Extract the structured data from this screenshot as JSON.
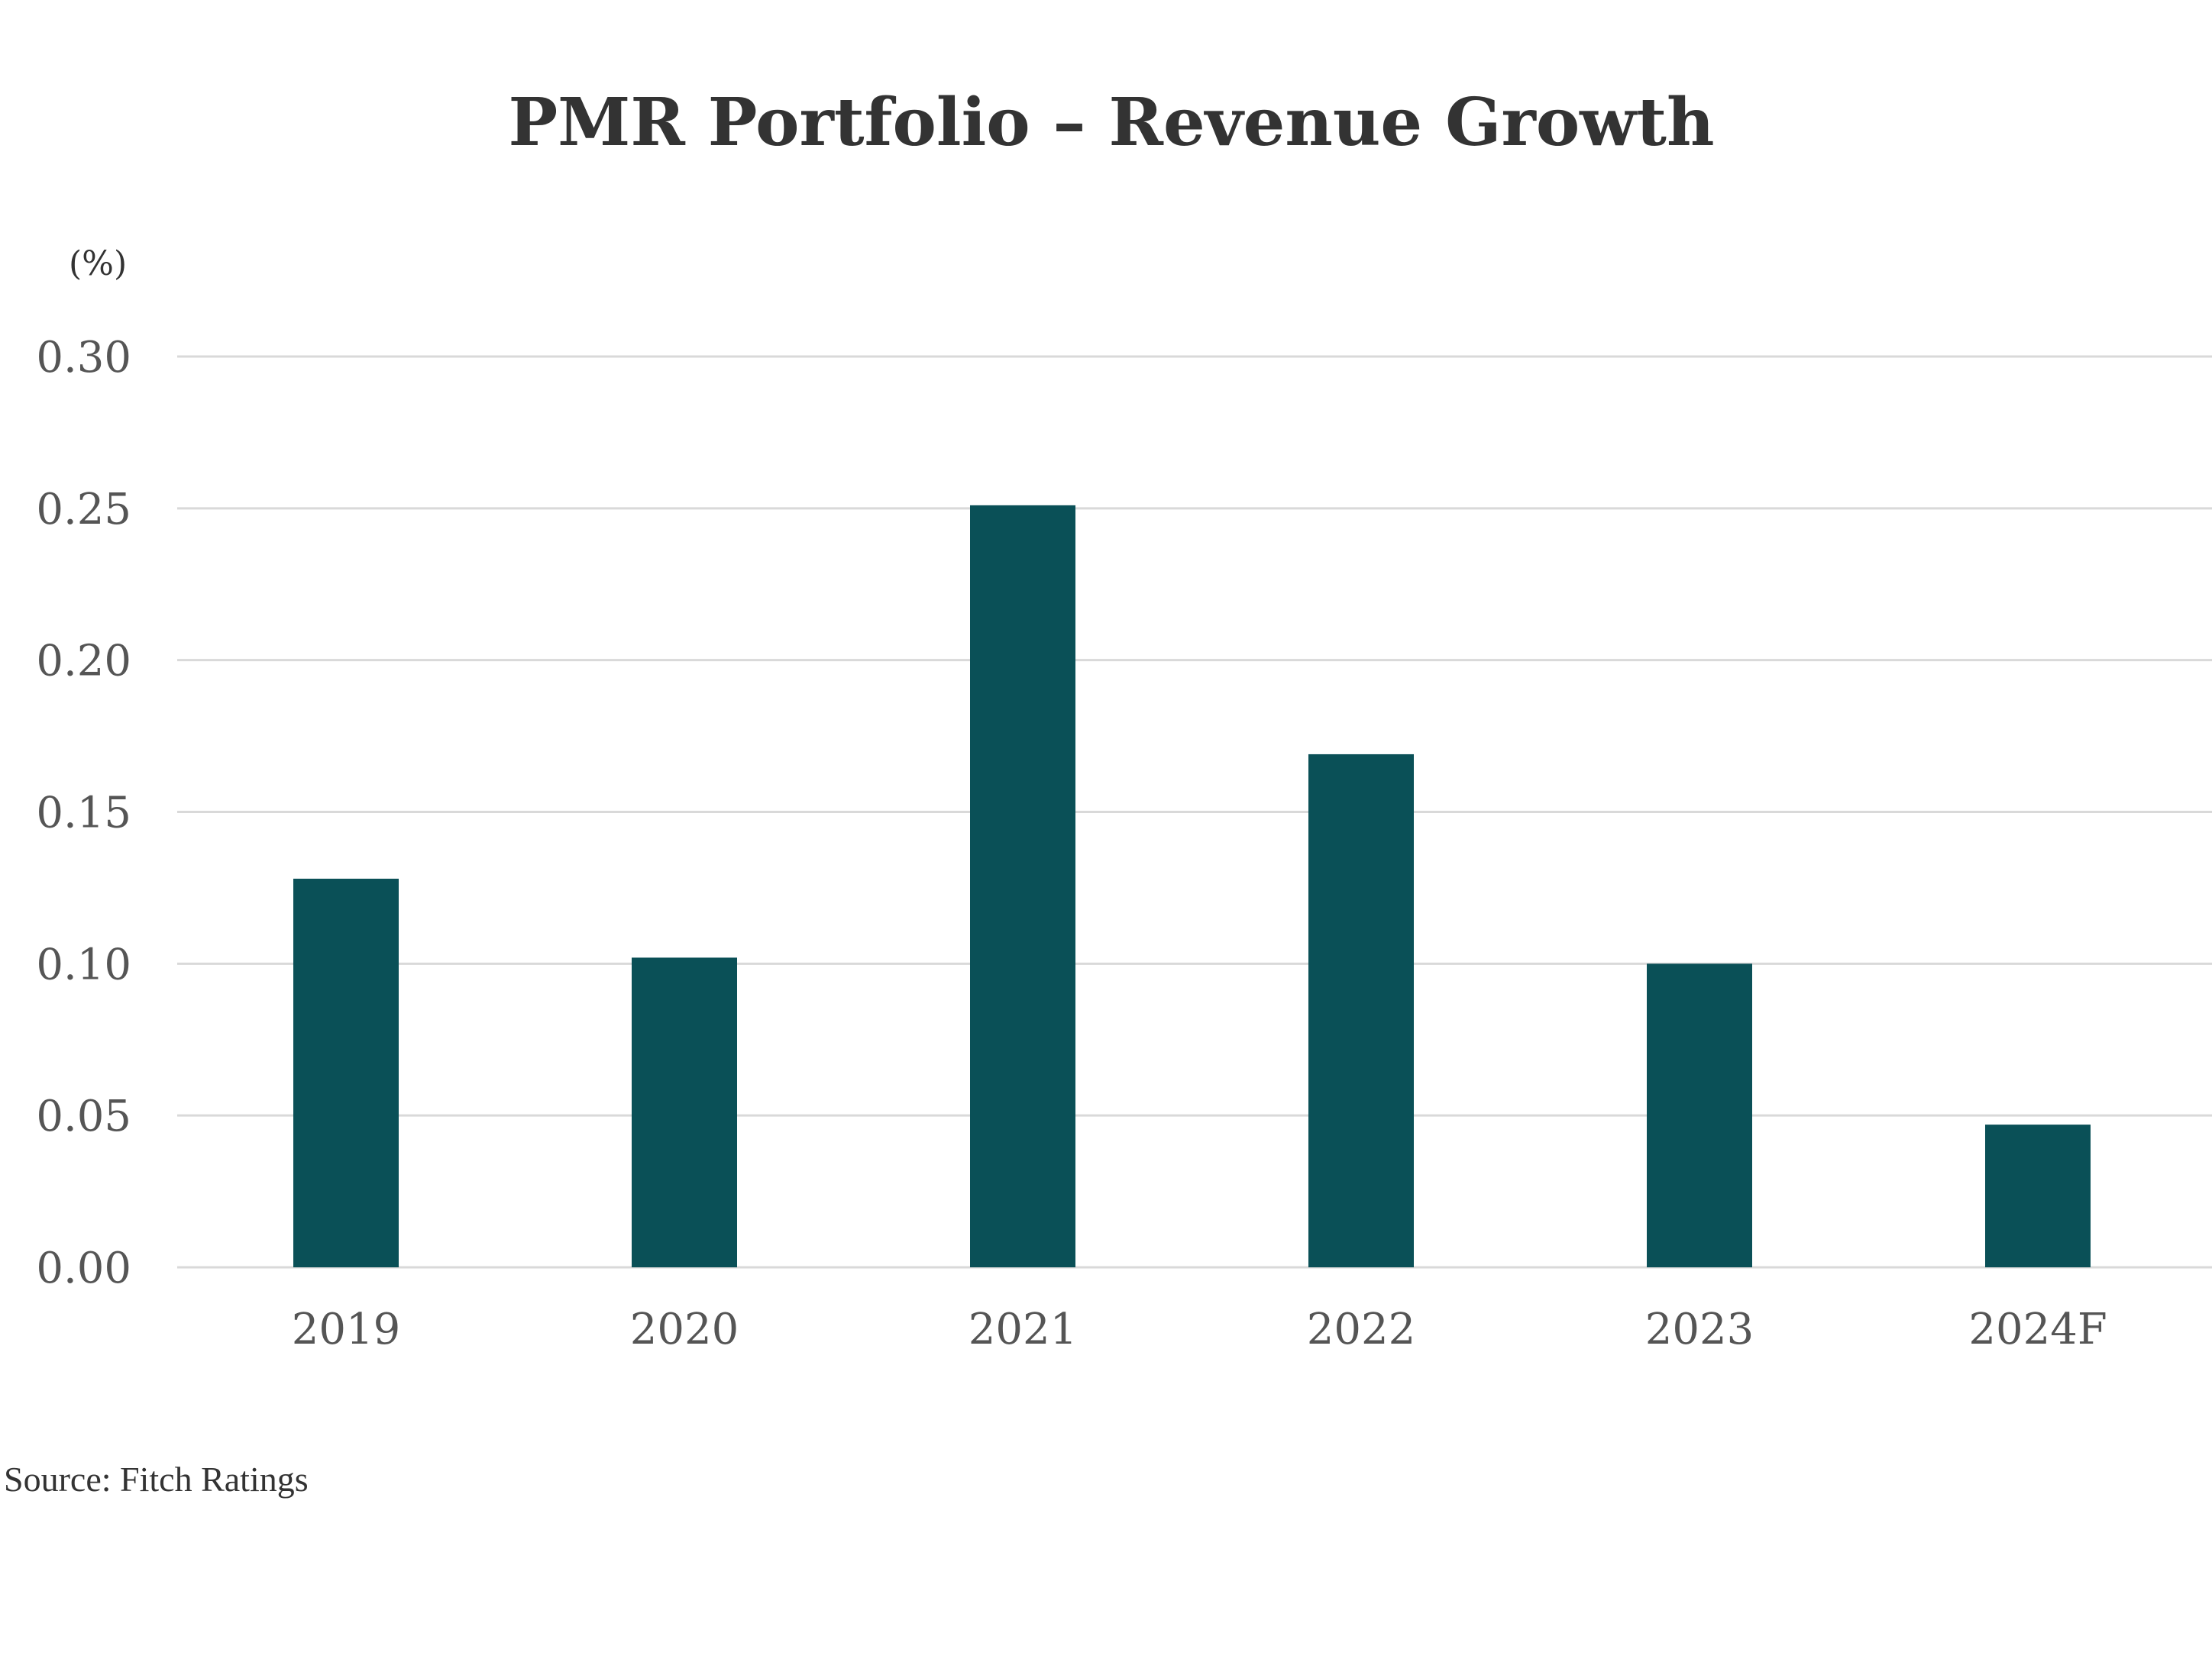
{
  "chart_data": {
    "type": "bar",
    "title": "PMR Portfolio – Revenue Growth",
    "unit_label": "(%)",
    "categories": [
      "2019",
      "2020",
      "2021",
      "2022",
      "2023",
      "2024F"
    ],
    "values": [
      0.128,
      0.102,
      0.251,
      0.169,
      0.1,
      0.047
    ],
    "ylim": [
      0,
      0.3
    ],
    "yticks": [
      "0.00",
      "0.05",
      "0.10",
      "0.15",
      "0.20",
      "0.25",
      "0.30"
    ],
    "xlabel": "",
    "ylabel": "",
    "grid": true,
    "legend": "none",
    "bar_color": "#0a5057",
    "grid_color": "#d9d9d9",
    "source": "Source: Fitch Ratings"
  }
}
